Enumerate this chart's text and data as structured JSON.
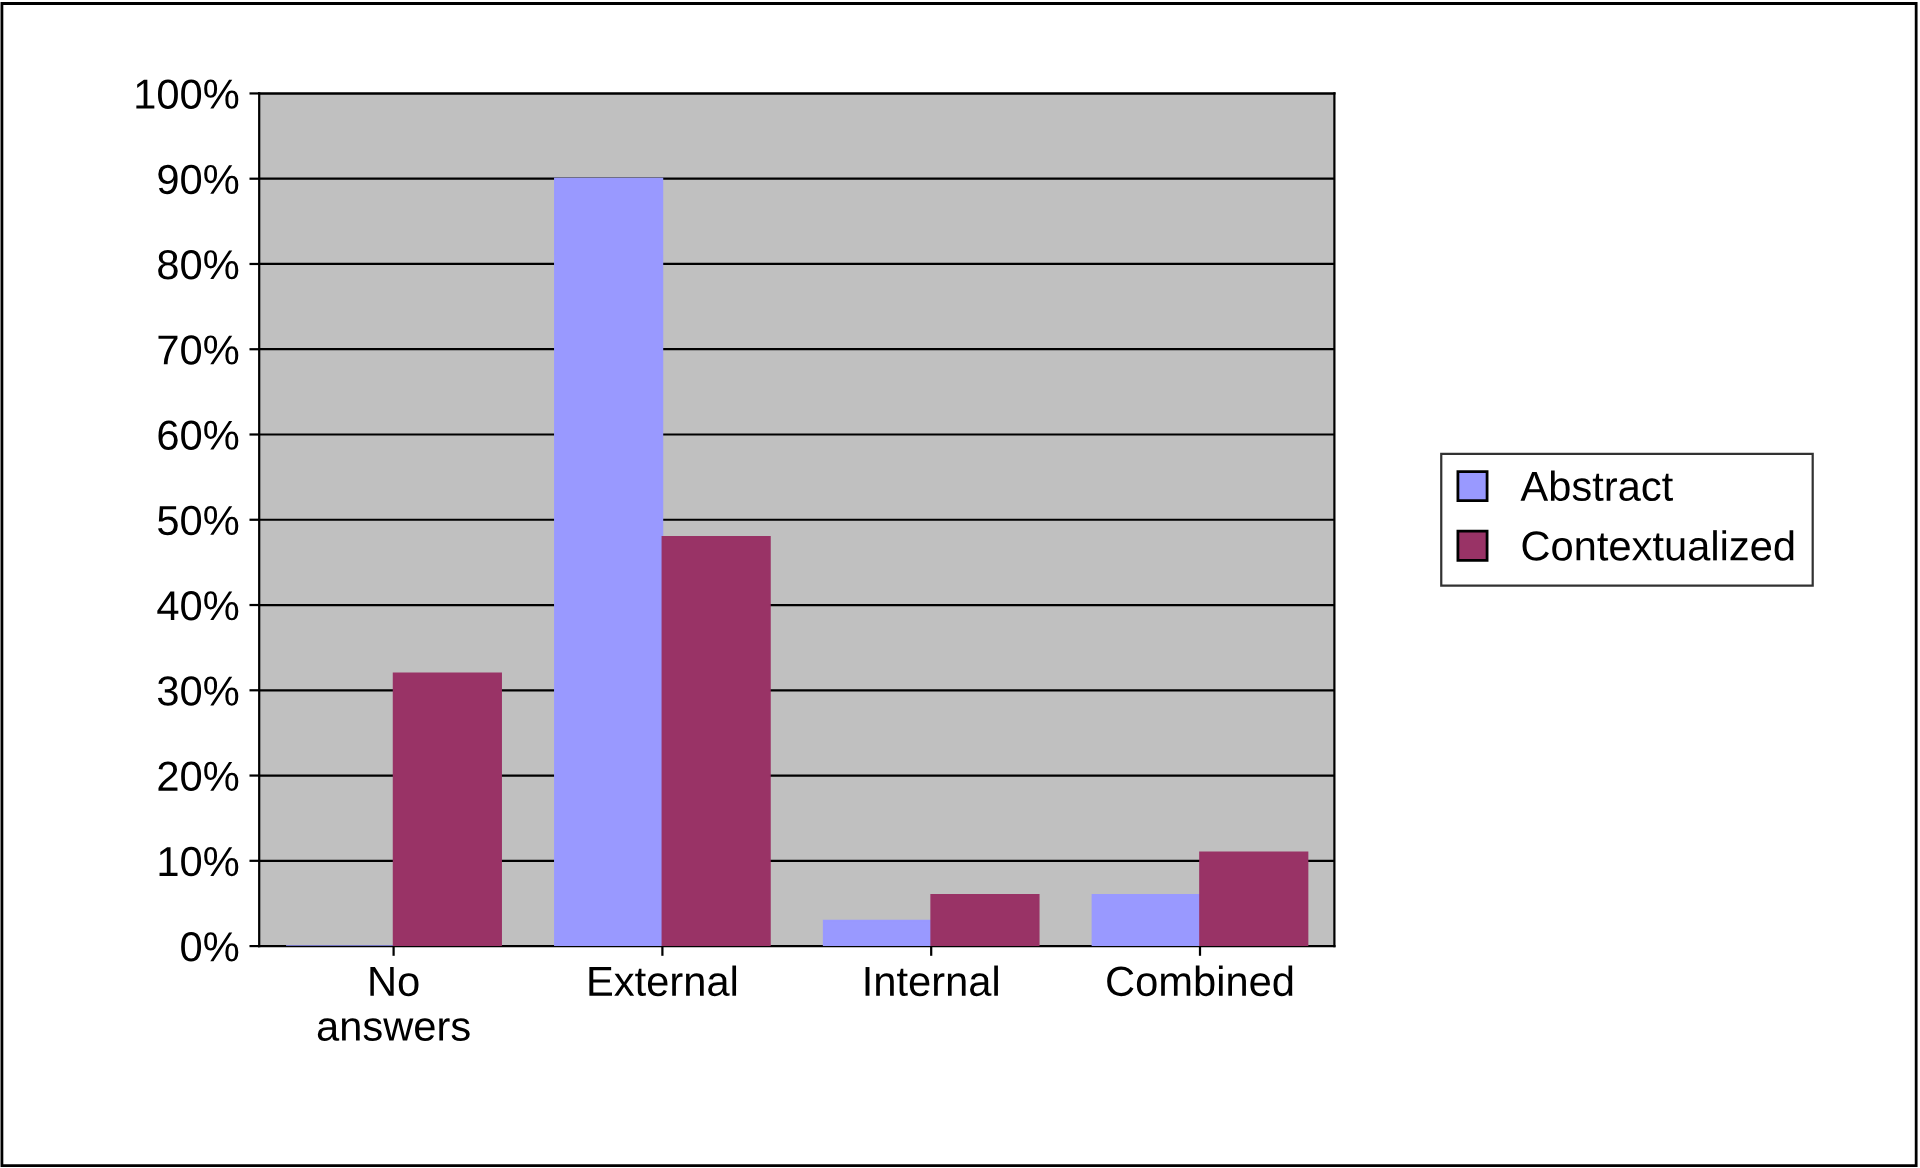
{
  "chart_data": {
    "type": "bar",
    "categories": [
      "No\nanswers",
      "External",
      "Internal",
      "Combined"
    ],
    "series": [
      {
        "name": "Abstract",
        "color": "#9999ff",
        "values": [
          0,
          90,
          3,
          6
        ]
      },
      {
        "name": "Contextualized",
        "color": "#993366",
        "values": [
          32,
          48,
          6,
          11
        ]
      }
    ],
    "ylim": [
      0,
      100
    ],
    "yticks": [
      {
        "value": 0,
        "label": "0%"
      },
      {
        "value": 10,
        "label": "10%"
      },
      {
        "value": 20,
        "label": "20%"
      },
      {
        "value": 30,
        "label": "30%"
      },
      {
        "value": 40,
        "label": "40%"
      },
      {
        "value": 50,
        "label": "50%"
      },
      {
        "value": 60,
        "label": "60%"
      },
      {
        "value": 70,
        "label": "70%"
      },
      {
        "value": 80,
        "label": "80%"
      },
      {
        "value": 90,
        "label": "90%"
      },
      {
        "value": 100,
        "label": "100%"
      }
    ],
    "grid": "y",
    "legend": "right"
  }
}
